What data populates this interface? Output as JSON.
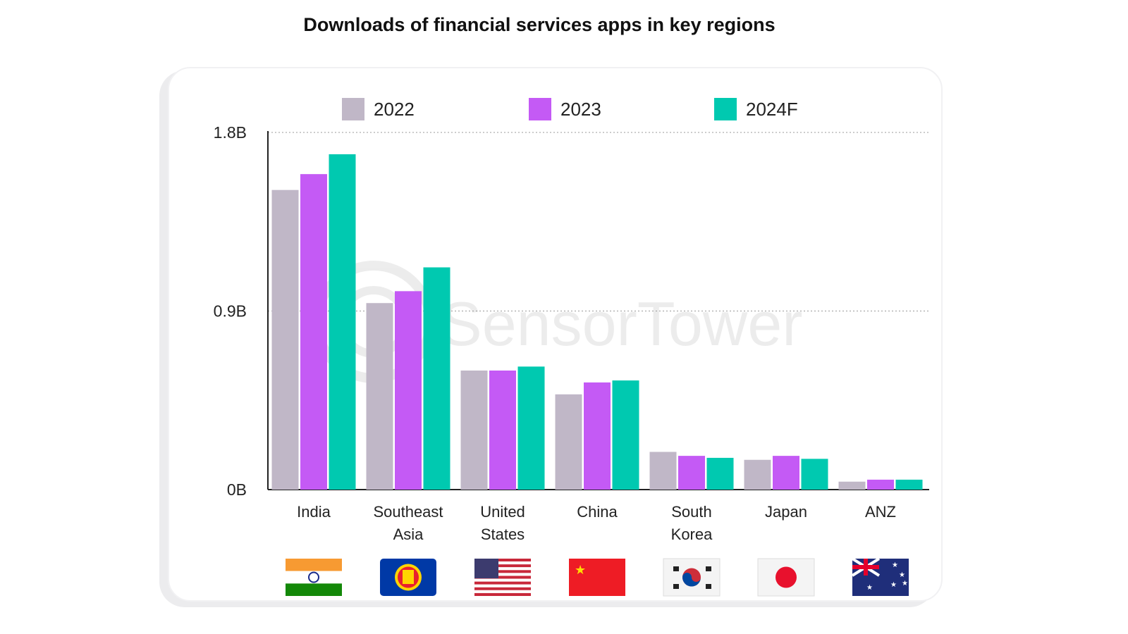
{
  "chart_data": {
    "type": "bar",
    "title": "Downloads of financial services apps in key regions",
    "categories": [
      [
        "India"
      ],
      [
        "Southeast",
        "Asia"
      ],
      [
        "United",
        "States"
      ],
      [
        "China"
      ],
      [
        "South",
        "Korea"
      ],
      [
        "Japan"
      ],
      [
        "ANZ"
      ]
    ],
    "flags": [
      "india-flag",
      "asean-flag",
      "usa-flag",
      "china-flag",
      "south-korea-flag",
      "japan-flag",
      "australia-flag"
    ],
    "series": [
      {
        "name": "2022",
        "color": "#c0b7c7",
        "values": [
          1.51,
          0.94,
          0.6,
          0.48,
          0.19,
          0.15,
          0.04
        ]
      },
      {
        "name": "2023",
        "color": "#c45af5",
        "values": [
          1.59,
          1.0,
          0.6,
          0.54,
          0.17,
          0.17,
          0.05
        ]
      },
      {
        "name": "2024F",
        "color": "#00c9b0",
        "values": [
          1.69,
          1.12,
          0.62,
          0.55,
          0.16,
          0.155,
          0.05
        ]
      }
    ],
    "y_ticks": [
      "0B",
      "0.9B",
      "1.8B"
    ],
    "y_tick_values": [
      0,
      0.9,
      1.8
    ],
    "ylim": [
      0,
      1.8
    ],
    "unit": "B",
    "grid": "horizontal dotted",
    "legend_position": "top",
    "watermark": "SensorTower"
  }
}
